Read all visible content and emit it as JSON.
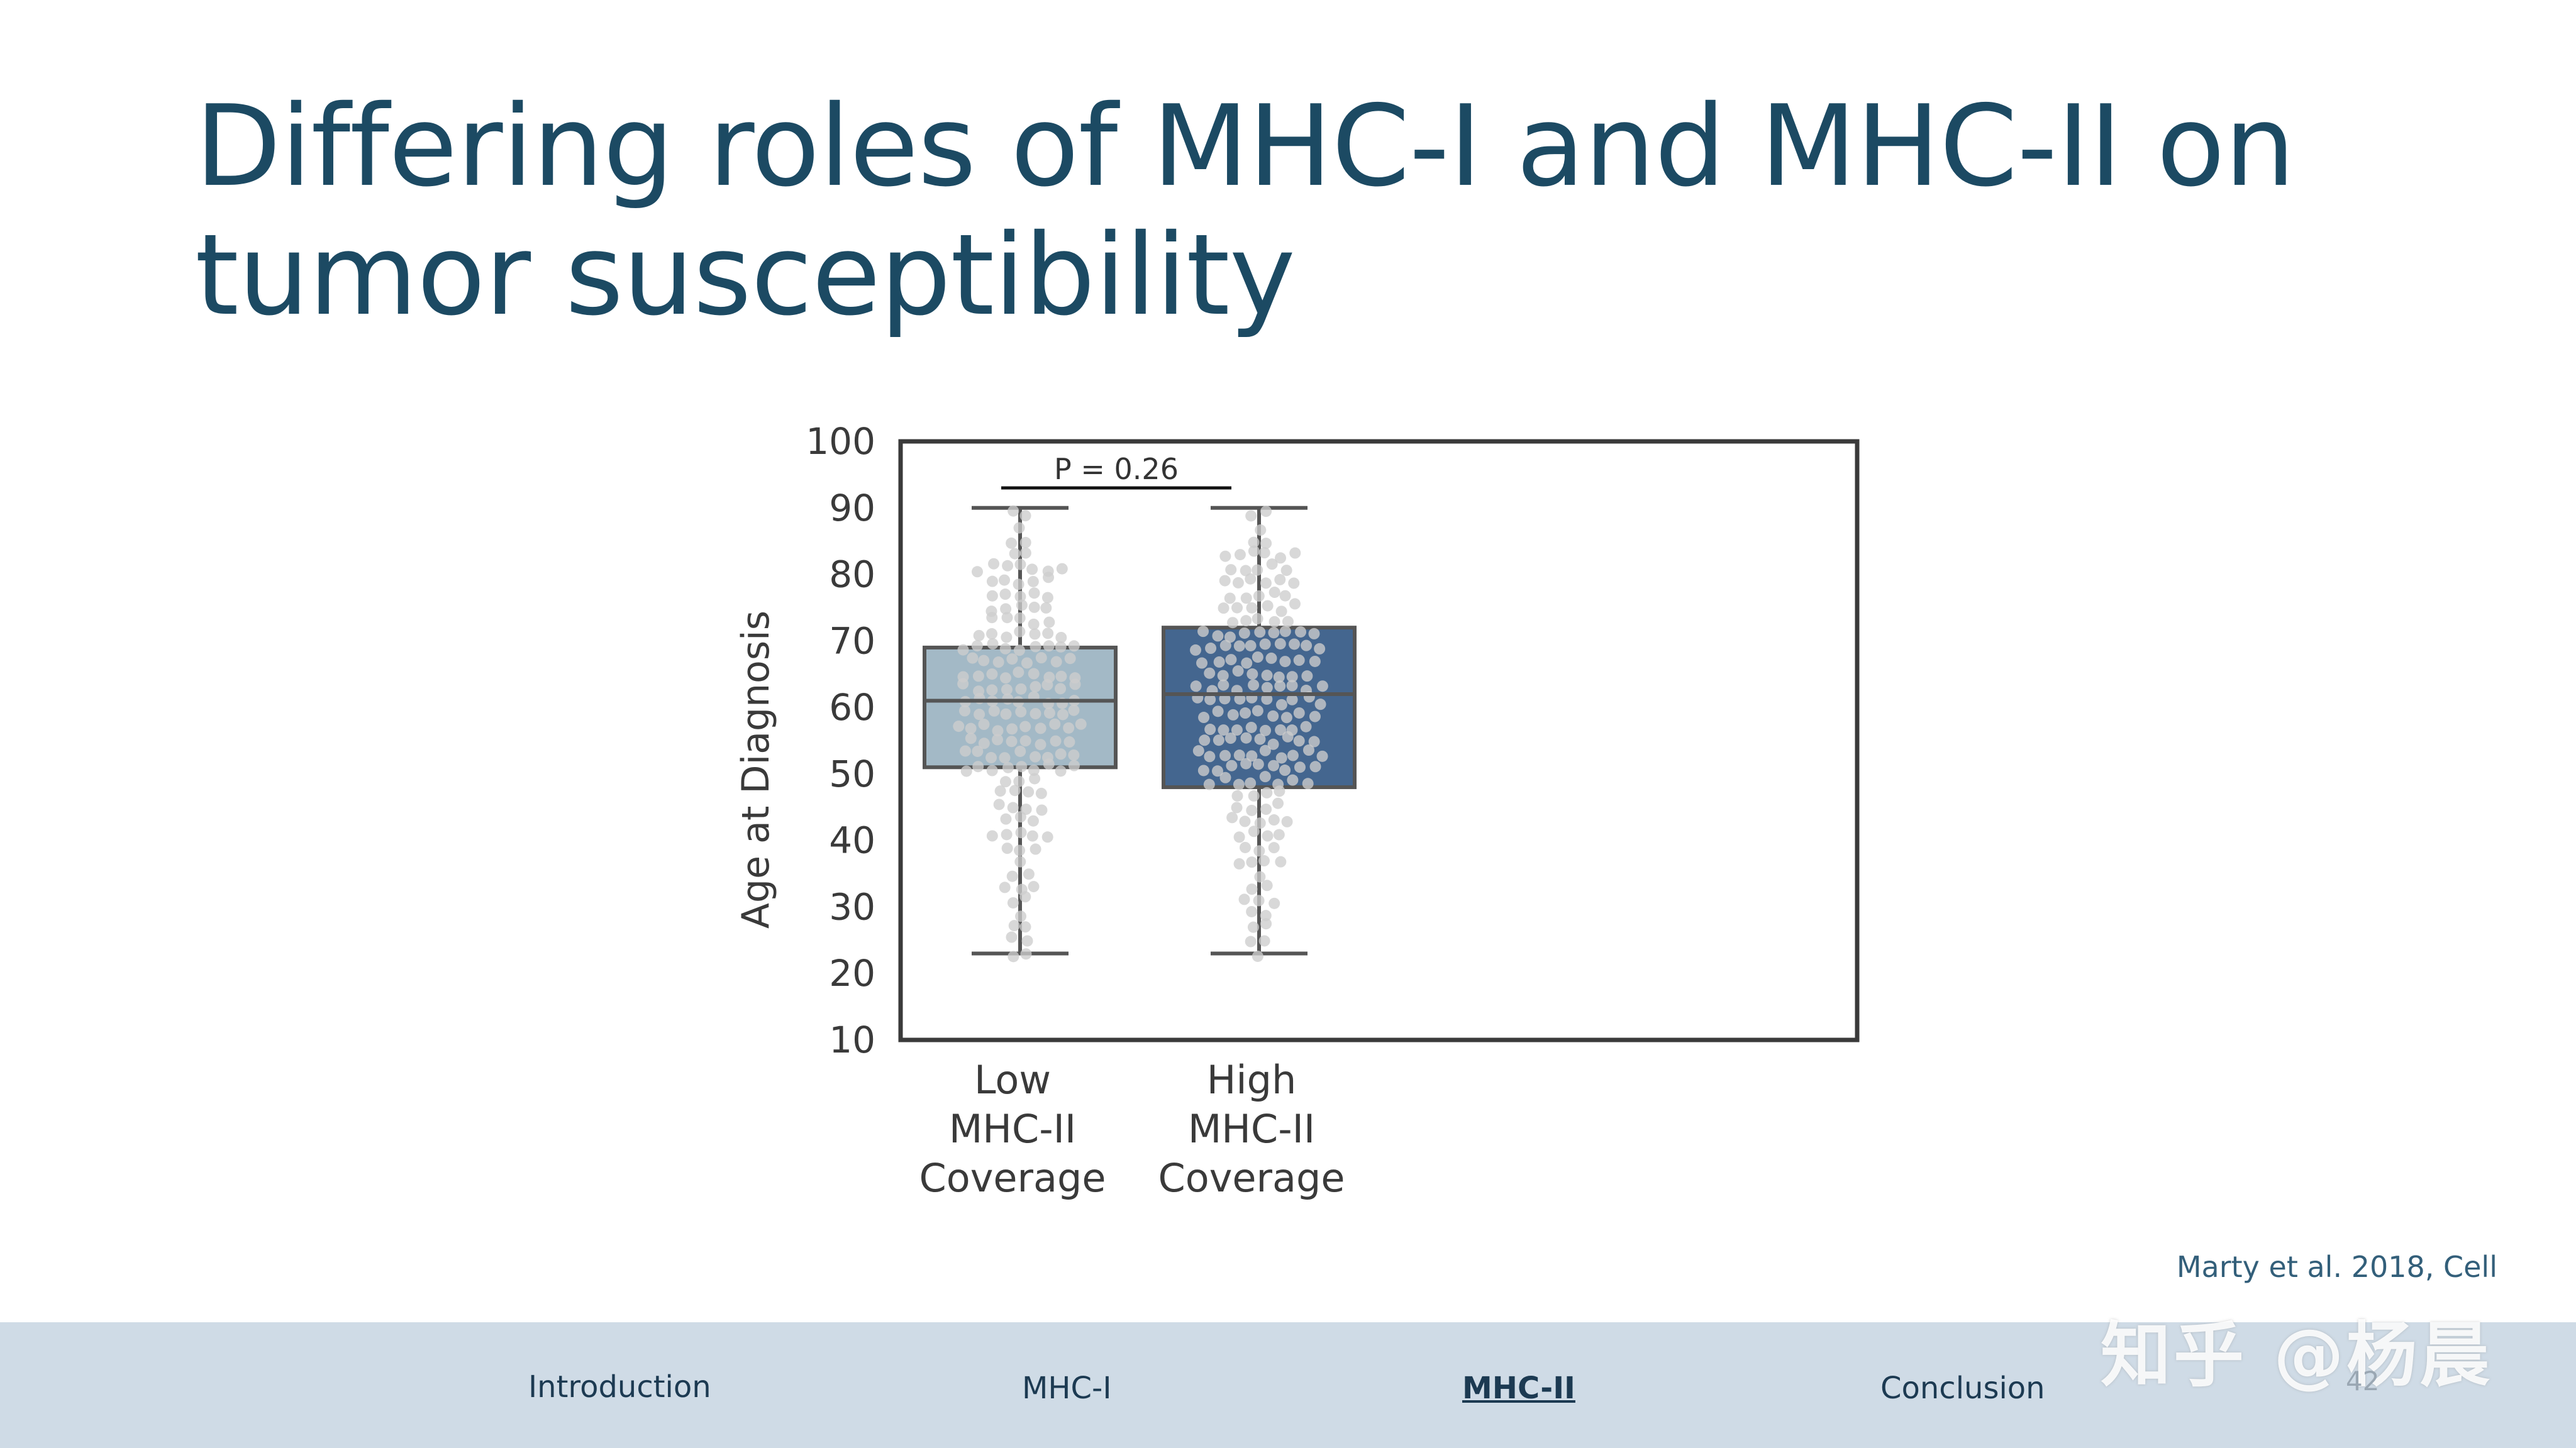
{
  "slide": {
    "title_line1": "Differing roles of MHC-I and MHC-II on",
    "title_line2": "tumor susceptibility",
    "citation": "Marty et al. 2018, Cell",
    "page_number": "42",
    "watermark": "知乎 @杨晨"
  },
  "nav": {
    "items": [
      "Introduction",
      "MHC-I",
      "MHC-II",
      "Conclusion"
    ],
    "active": "MHC-II"
  },
  "colors": {
    "title": "#1c4a63",
    "low_box": "#a3b9c6",
    "high_box": "#44668f",
    "points": "#cdcdcd",
    "footer": "#cfdbe6"
  },
  "chart_data": {
    "type": "box",
    "ylabel": "Age at Diagnosis",
    "ylim": [
      10,
      100
    ],
    "yticks": [
      10,
      20,
      30,
      40,
      50,
      60,
      70,
      80,
      90,
      100
    ],
    "categories": [
      [
        "Low",
        "MHC-II",
        "Coverage"
      ],
      [
        "High",
        "MHC-II",
        "Coverage"
      ]
    ],
    "boxes": [
      {
        "min": 23,
        "q1": 51,
        "median": 61,
        "q3": 69,
        "max": 90
      },
      {
        "min": 23,
        "q1": 48,
        "median": 62,
        "q3": 72,
        "max": 90
      }
    ],
    "annotation": {
      "text": "P = 0.26",
      "between": [
        0,
        1
      ],
      "y": 93
    },
    "grid": false,
    "overlay": "swarm"
  }
}
